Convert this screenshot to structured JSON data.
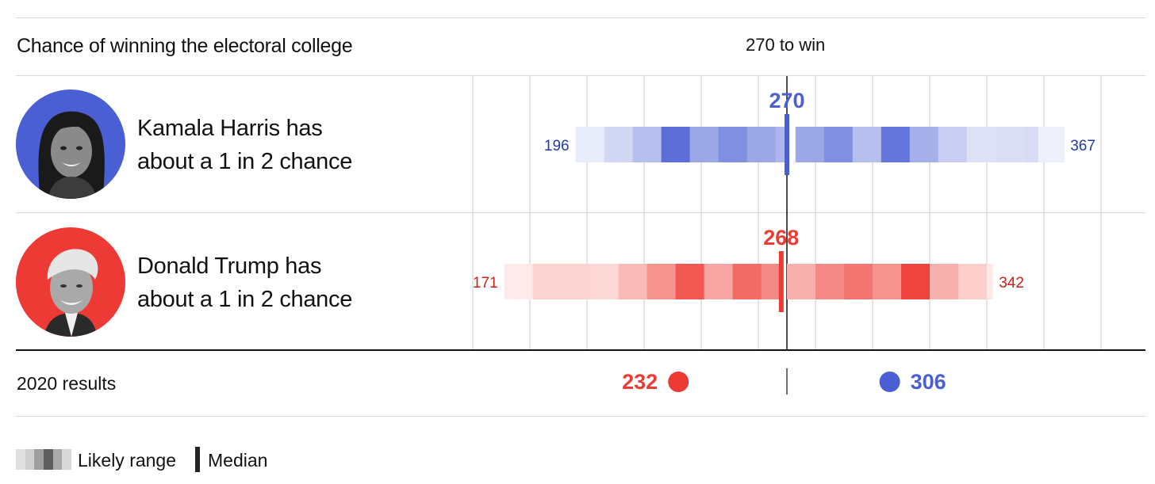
{
  "header": {
    "title": "Chance of winning the electoral college",
    "threshold_label": "270 to win"
  },
  "candidates": [
    {
      "text_line1": "Kamala Harris has",
      "text_line2": "about a 1 in 2 chance",
      "portrait_icon": "harris-portrait",
      "color": "#4a5fd4",
      "median": 270,
      "range_low": 196,
      "range_high": 367,
      "median_label": "270",
      "low_label": "196",
      "high_label": "367",
      "band_bins": [
        {
          "from": 196,
          "to": 206,
          "intensity": 0.12
        },
        {
          "from": 206,
          "to": 216,
          "intensity": 0.25
        },
        {
          "from": 216,
          "to": 226,
          "intensity": 0.4
        },
        {
          "from": 226,
          "to": 236,
          "intensity": 0.9
        },
        {
          "from": 236,
          "to": 246,
          "intensity": 0.55
        },
        {
          "from": 246,
          "to": 256,
          "intensity": 0.7
        },
        {
          "from": 256,
          "to": 266,
          "intensity": 0.55
        },
        {
          "from": 266,
          "to": 270,
          "intensity": 0.45
        },
        {
          "from": 270,
          "to": 273,
          "intensity": 0.0
        },
        {
          "from": 273,
          "to": 283,
          "intensity": 0.55
        },
        {
          "from": 283,
          "to": 293,
          "intensity": 0.7
        },
        {
          "from": 293,
          "to": 303,
          "intensity": 0.4
        },
        {
          "from": 303,
          "to": 313,
          "intensity": 0.85
        },
        {
          "from": 313,
          "to": 323,
          "intensity": 0.5
        },
        {
          "from": 323,
          "to": 333,
          "intensity": 0.3
        },
        {
          "from": 333,
          "to": 343,
          "intensity": 0.18
        },
        {
          "from": 343,
          "to": 353,
          "intensity": 0.2
        },
        {
          "from": 353,
          "to": 358,
          "intensity": 0.22
        },
        {
          "from": 358,
          "to": 367,
          "intensity": 0.1
        }
      ]
    },
    {
      "text_line1": "Donald Trump has",
      "text_line2": "about a 1 in 2 chance",
      "portrait_icon": "trump-portrait",
      "color": "#ee3a34",
      "median": 268,
      "range_low": 171,
      "range_high": 342,
      "median_label": "268",
      "low_label": "171",
      "high_label": "342",
      "band_bins": [
        {
          "from": 171,
          "to": 181,
          "intensity": 0.1
        },
        {
          "from": 181,
          "to": 191,
          "intensity": 0.22
        },
        {
          "from": 191,
          "to": 201,
          "intensity": 0.22
        },
        {
          "from": 201,
          "to": 211,
          "intensity": 0.2
        },
        {
          "from": 211,
          "to": 221,
          "intensity": 0.35
        },
        {
          "from": 221,
          "to": 231,
          "intensity": 0.55
        },
        {
          "from": 231,
          "to": 241,
          "intensity": 0.85
        },
        {
          "from": 241,
          "to": 251,
          "intensity": 0.45
        },
        {
          "from": 251,
          "to": 261,
          "intensity": 0.75
        },
        {
          "from": 261,
          "to": 268,
          "intensity": 0.6
        },
        {
          "from": 268,
          "to": 270,
          "intensity": 0.0
        },
        {
          "from": 270,
          "to": 280,
          "intensity": 0.4
        },
        {
          "from": 280,
          "to": 290,
          "intensity": 0.6
        },
        {
          "from": 290,
          "to": 300,
          "intensity": 0.7
        },
        {
          "from": 300,
          "to": 310,
          "intensity": 0.55
        },
        {
          "from": 310,
          "to": 320,
          "intensity": 0.95
        },
        {
          "from": 320,
          "to": 330,
          "intensity": 0.4
        },
        {
          "from": 330,
          "to": 340,
          "intensity": 0.25
        },
        {
          "from": 340,
          "to": 342,
          "intensity": 0.12
        }
      ]
    }
  ],
  "results_2020": {
    "label": "2020 results",
    "dem_value": 306,
    "rep_value": 232,
    "dem_label": "306",
    "rep_label": "232",
    "dem_color": "#4a5fd4",
    "rep_color": "#ee3a34"
  },
  "legend": {
    "range_label": "Likely range",
    "median_label": "Median",
    "range_swatch_grays": [
      "#e0e0e0",
      "#cfcfcf",
      "#9e9e9e",
      "#5e5e5e",
      "#a8a8a8",
      "#d8d8d8"
    ],
    "median_color": "#222222"
  },
  "chart_data": {
    "type": "range-band",
    "title": "Chance of winning the electoral college",
    "threshold": 270,
    "threshold_label": "270 to win",
    "x_domain": [
      160,
      375
    ],
    "grid": true,
    "series": [
      {
        "name": "Kamala Harris",
        "median": 270,
        "low": 196,
        "high": 367
      },
      {
        "name": "Donald Trump",
        "median": 268,
        "low": 171,
        "high": 342
      }
    ],
    "reference": {
      "name": "2020 results",
      "Trump": 232,
      "Harris": 306
    }
  }
}
